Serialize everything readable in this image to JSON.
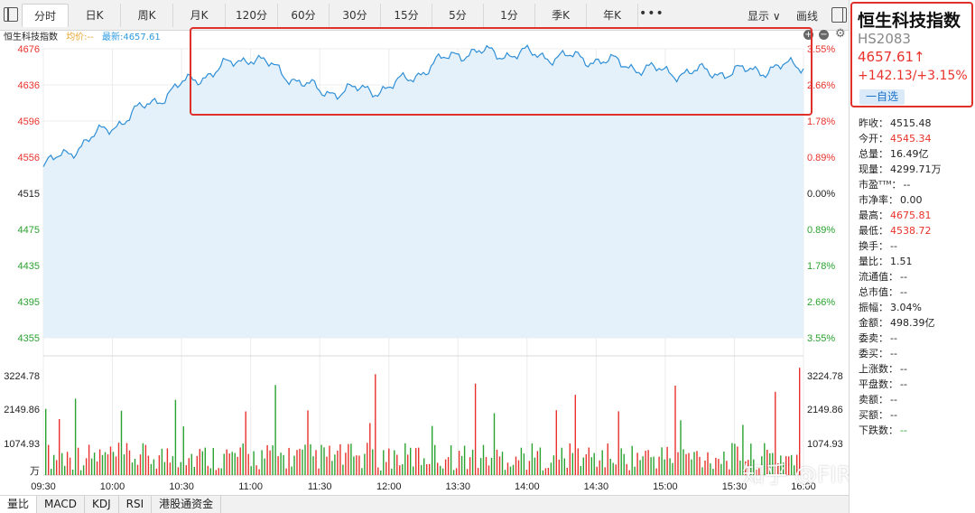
{
  "tabs": [
    "分时",
    "日K",
    "周K",
    "月K",
    "120分",
    "60分",
    "30分",
    "15分",
    "5分",
    "1分",
    "季K",
    "年K"
  ],
  "toolbar": {
    "more": "•••",
    "display": "显示 ∨",
    "draw": "画线"
  },
  "info": {
    "name": "恒生科技指数",
    "avg": "均价:--",
    "last": "最新:4657.61"
  },
  "price_axis_left": [
    "4676",
    "4636",
    "4596",
    "4556",
    "4515",
    "4475",
    "4435",
    "4395",
    "4355"
  ],
  "pct_axis_right": [
    "3.55%",
    "2.66%",
    "1.78%",
    "0.89%",
    "0.00%",
    "0.89%",
    "1.78%",
    "2.66%",
    "3.55%"
  ],
  "vol_axis_left": [
    "3224.78",
    "2149.86",
    "1074.93",
    "万"
  ],
  "vol_axis_right": [
    "3224.78",
    "2149.86",
    "1074.93"
  ],
  "time_labels": [
    "09:30",
    "10:00",
    "10:30",
    "11:00",
    "11:30",
    "12:00",
    "13:30",
    "14:00",
    "14:30",
    "15:00",
    "15:30",
    "16:00"
  ],
  "indicators": [
    "量比",
    "MACD",
    "KDJ",
    "RSI",
    "港股通资金"
  ],
  "panel": {
    "title": "恒生科技指数",
    "code": "HS2083",
    "price": "4657.61↑",
    "change": "+142.13/+3.15%",
    "fav": "一自选"
  },
  "stats": [
    {
      "label": "昨收：",
      "value": "4515.48",
      "color": ""
    },
    {
      "label": "今开：",
      "value": "4545.34",
      "color": "red"
    },
    {
      "label": "总量：",
      "value": "16.49亿",
      "color": ""
    },
    {
      "label": "现量：",
      "value": "4299.71万",
      "color": ""
    },
    {
      "label": "市盈ᵀᵀᴹ：",
      "value": "--",
      "color": ""
    },
    {
      "label": "市净率：",
      "value": "0.00",
      "color": ""
    },
    {
      "label": "最高：",
      "value": "4675.81",
      "color": "red"
    },
    {
      "label": "最低：",
      "value": "4538.72",
      "color": "red"
    },
    {
      "label": "换手：",
      "value": "--",
      "color": ""
    },
    {
      "label": "量比：",
      "value": "1.51",
      "color": ""
    },
    {
      "label": "流通值：",
      "value": "--",
      "color": ""
    },
    {
      "label": "总市值：",
      "value": "--",
      "color": ""
    },
    {
      "label": "振幅：",
      "value": "3.04%",
      "color": ""
    },
    {
      "label": "金额：",
      "value": "498.39亿",
      "color": ""
    },
    {
      "label": "委卖：",
      "value": "--",
      "color": ""
    },
    {
      "label": "委买：",
      "value": "--",
      "color": ""
    },
    {
      "label": "上涨数：",
      "value": "--",
      "color": ""
    },
    {
      "label": "平盘数：",
      "value": "--",
      "color": ""
    },
    {
      "label": "卖额：",
      "value": "--",
      "color": ""
    },
    {
      "label": "买额：",
      "value": "--",
      "color": ""
    },
    {
      "label": "下跌数：",
      "value": "--",
      "color": "green"
    }
  ],
  "watermark": "知乎 @FIRE定投",
  "colors": {
    "up": "#e8322b",
    "down": "#2aa22f",
    "line": "#2f8fd6",
    "fill": "#e4f1fb",
    "highlight": "#e0302a"
  },
  "chart_data": {
    "type": "line",
    "x": [
      "09:30",
      "10:00",
      "10:30",
      "11:00",
      "11:30",
      "12:00",
      "13:30",
      "14:00",
      "14:30",
      "15:00",
      "15:30",
      "16:00"
    ],
    "y": [
      4545,
      4590,
      4636,
      4668,
      4628,
      4632,
      4672,
      4670,
      4664,
      4650,
      4650,
      4658
    ],
    "ylim": [
      4355,
      4676
    ],
    "volume_ylim": [
      0,
      3224.78
    ]
  }
}
